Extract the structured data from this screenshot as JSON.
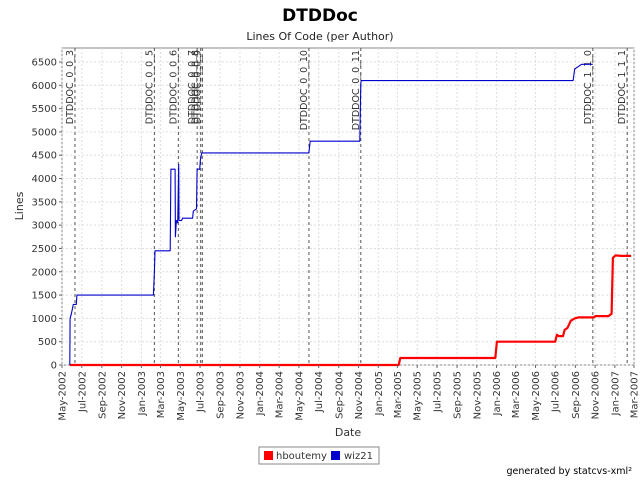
{
  "chart_data": {
    "type": "line",
    "title": "DTDDoc",
    "subtitle": "Lines Of Code (per Author)",
    "xlabel": "Date",
    "ylabel": "Lines",
    "x_ticks": [
      "May-2002",
      "Jul-2002",
      "Sep-2002",
      "Nov-2002",
      "Jan-2003",
      "Mar-2003",
      "May-2003",
      "Jul-2003",
      "Sep-2003",
      "Nov-2003",
      "Jan-2004",
      "Mar-2004",
      "May-2004",
      "Jul-2004",
      "Sep-2004",
      "Nov-2004",
      "Jan-2005",
      "Mar-2005",
      "May-2005",
      "Jul-2005",
      "Sep-2005",
      "Nov-2005",
      "Jan-2006",
      "Mar-2006",
      "May-2006",
      "Jul-2006",
      "Sep-2006",
      "Nov-2006",
      "Jan-2007",
      "Mar-2007"
    ],
    "xlim": [
      "2002-05-01",
      "2007-03-01"
    ],
    "ylim": [
      0,
      6800
    ],
    "y_ticks": [
      0,
      500,
      1000,
      1500,
      2000,
      2500,
      3000,
      3500,
      4000,
      4500,
      5000,
      5500,
      6000,
      6500
    ],
    "grid": true,
    "legend_position": "bottom",
    "markers": [
      {
        "date": "2002-06-10",
        "label": "DTDDOC_0_0_3"
      },
      {
        "date": "2003-02-10",
        "label": "DTDDOC_0_0_5"
      },
      {
        "date": "2003-04-25",
        "label": "DTDDOC_0_0_6"
      },
      {
        "date": "2003-06-22",
        "label": "DTDDOC_0_0_7"
      },
      {
        "date": "2003-07-03",
        "label": "DTDDOC_0_0_8"
      },
      {
        "date": "2003-07-08",
        "label": "DTDDOC_0_0_9"
      },
      {
        "date": "2004-06-01",
        "label": "DTDDOC_0_0_10"
      },
      {
        "date": "2004-11-08",
        "label": "DTDDOC_0_0_11"
      },
      {
        "date": "2006-10-25",
        "label": "DTDDOC_1_1_0"
      },
      {
        "date": "2007-02-08",
        "label": "DTDDOC_1_1_1"
      }
    ],
    "series": [
      {
        "name": "hboutemy",
        "color": "#ff0000",
        "points": [
          [
            "2002-05-25",
            0
          ],
          [
            "2005-03-05",
            0
          ],
          [
            "2005-03-10",
            150
          ],
          [
            "2005-12-28",
            150
          ],
          [
            "2006-01-02",
            500
          ],
          [
            "2006-07-01",
            500
          ],
          [
            "2006-07-06",
            650
          ],
          [
            "2006-07-12",
            620
          ],
          [
            "2006-07-25",
            620
          ],
          [
            "2006-07-30",
            750
          ],
          [
            "2006-08-08",
            800
          ],
          [
            "2006-08-18",
            950
          ],
          [
            "2006-08-30",
            1000
          ],
          [
            "2006-09-10",
            1020
          ],
          [
            "2006-10-28",
            1020
          ],
          [
            "2006-11-02",
            1050
          ],
          [
            "2006-12-12",
            1050
          ],
          [
            "2006-12-22",
            1100
          ],
          [
            "2006-12-26",
            2300
          ],
          [
            "2007-01-03",
            2350
          ],
          [
            "2007-01-20",
            2340
          ],
          [
            "2007-02-20",
            2340
          ]
        ]
      },
      {
        "name": "wiz21",
        "color": "#0000cc",
        "points": [
          [
            "2002-05-25",
            0
          ],
          [
            "2002-05-26",
            1000
          ],
          [
            "2002-05-30",
            1100
          ],
          [
            "2002-06-05",
            1300
          ],
          [
            "2002-06-14",
            1300
          ],
          [
            "2002-06-16",
            1500
          ],
          [
            "2003-02-07",
            1500
          ],
          [
            "2003-02-10",
            2000
          ],
          [
            "2003-02-12",
            2450
          ],
          [
            "2003-03-31",
            2450
          ],
          [
            "2003-04-02",
            4200
          ],
          [
            "2003-04-15",
            4200
          ],
          [
            "2003-04-16",
            2750
          ],
          [
            "2003-04-19",
            3100
          ],
          [
            "2003-04-23",
            3050
          ],
          [
            "2003-04-26",
            4300
          ],
          [
            "2003-04-27",
            3100
          ],
          [
            "2003-05-05",
            3100
          ],
          [
            "2003-05-08",
            3150
          ],
          [
            "2003-06-08",
            3150
          ],
          [
            "2003-06-10",
            3300
          ],
          [
            "2003-06-20",
            3350
          ],
          [
            "2003-06-22",
            4200
          ],
          [
            "2003-06-30",
            4200
          ],
          [
            "2003-07-02",
            4400
          ],
          [
            "2003-07-06",
            4550
          ],
          [
            "2004-06-01",
            4550
          ],
          [
            "2004-06-05",
            4800
          ],
          [
            "2004-11-05",
            4800
          ],
          [
            "2004-11-08",
            6050
          ],
          [
            "2004-11-10",
            6100
          ],
          [
            "2006-08-25",
            6100
          ],
          [
            "2006-08-30",
            6350
          ],
          [
            "2006-09-10",
            6400
          ],
          [
            "2006-09-20",
            6450
          ],
          [
            "2006-10-25",
            6450
          ]
        ]
      }
    ]
  },
  "footer": "generated by statcvs-xml²"
}
